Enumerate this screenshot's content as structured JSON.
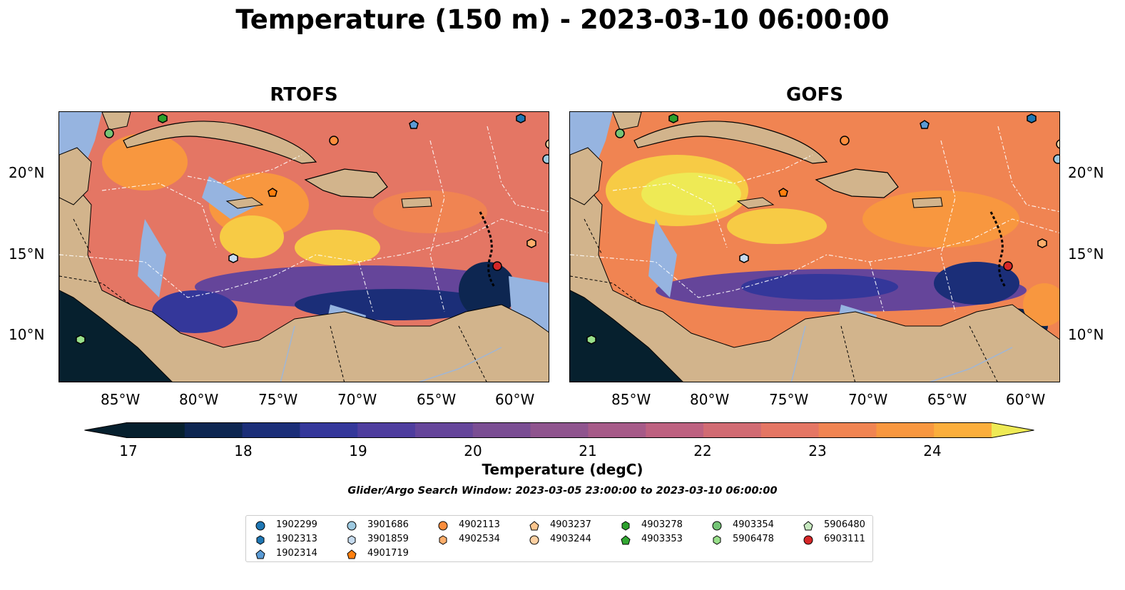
{
  "figure": {
    "title": "Temperature (150 m) - 2023-03-10 06:00:00",
    "panels": [
      {
        "title": "RTOFS"
      },
      {
        "title": "GOFS"
      }
    ],
    "lon_ticks": [
      "85°W",
      "80°W",
      "75°W",
      "70°W",
      "65°W",
      "60°W"
    ],
    "lat_ticks": [
      "20°N",
      "15°N",
      "10°N"
    ],
    "colorbar": {
      "label": "Temperature (degC)",
      "ticks": [
        "17",
        "18",
        "19",
        "20",
        "21",
        "22",
        "23",
        "24"
      ],
      "min": 16.5,
      "max": 24.5,
      "step": 0.5,
      "colors": [
        "#06202e",
        "#0d2651",
        "#1b2e78",
        "#34379a",
        "#4e3d9e",
        "#65459a",
        "#7a4d93",
        "#8f548e",
        "#a65a88",
        "#bd6180",
        "#d16b73",
        "#e47664",
        "#f08452",
        "#f8973f",
        "#fbae3c",
        "#f7cb45",
        "#eeea55"
      ]
    },
    "search_window": "Glider/Argo Search Window: 2023-03-05 23:00:00 to 2023-03-10 06:00:00",
    "colors": {
      "land": "#d2b48c",
      "shelf": "#96b4e0",
      "outline": "#000000"
    },
    "legend": [
      {
        "id": "1902299",
        "color": "#1f77b4",
        "shape": "circle"
      },
      {
        "id": "1902313",
        "color": "#1f77b4",
        "shape": "hexagon"
      },
      {
        "id": "1902314",
        "color": "#5b9bd5",
        "shape": "pentagon"
      },
      {
        "id": "3901686",
        "color": "#9ecae1",
        "shape": "circle"
      },
      {
        "id": "3901859",
        "color": "#c6dbef",
        "shape": "hexagon"
      },
      {
        "id": "4901719",
        "color": "#ff7f0e",
        "shape": "pentagon"
      },
      {
        "id": "4902113",
        "color": "#fd8d3c",
        "shape": "circle"
      },
      {
        "id": "4902534",
        "color": "#fdae6b",
        "shape": "hexagon"
      },
      {
        "id": "4903237",
        "color": "#fdc58d",
        "shape": "pentagon"
      },
      {
        "id": "4903244",
        "color": "#fdd0a2",
        "shape": "circle"
      },
      {
        "id": "4903278",
        "color": "#2ca02c",
        "shape": "hexagon"
      },
      {
        "id": "4903353",
        "color": "#33a833",
        "shape": "pentagon"
      },
      {
        "id": "4903354",
        "color": "#74c476",
        "shape": "circle"
      },
      {
        "id": "5906478",
        "color": "#98df8a",
        "shape": "hexagon"
      },
      {
        "id": "5906480",
        "color": "#c7e9c0",
        "shape": "pentagon"
      },
      {
        "id": "6903111",
        "color": "#d62728",
        "shape": "circle"
      }
    ]
  }
}
